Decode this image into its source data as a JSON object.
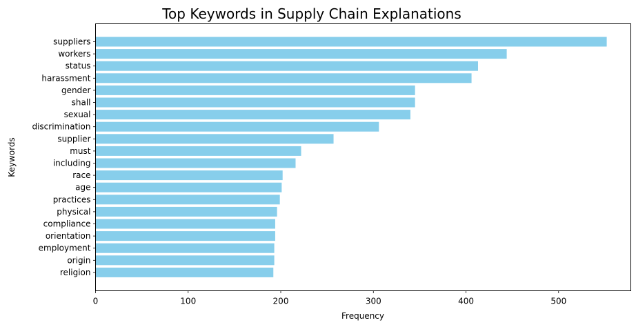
{
  "chart_data": {
    "type": "bar",
    "orientation": "horizontal",
    "title": "Top Keywords in Supply Chain Explanations",
    "xlabel": "Frequency",
    "ylabel": "Keywords",
    "xlim": [
      0,
      578
    ],
    "xticks": [
      0,
      100,
      200,
      300,
      400,
      500
    ],
    "grid": false,
    "bar_color": "#87ceeb",
    "categories": [
      "suppliers",
      "workers",
      "status",
      "harassment",
      "gender",
      "shall",
      "sexual",
      "discrimination",
      "supplier",
      "must",
      "including",
      "race",
      "age",
      "practices",
      "physical",
      "compliance",
      "orientation",
      "employment",
      "origin",
      "religion"
    ],
    "values": [
      552,
      444,
      413,
      406,
      345,
      345,
      340,
      306,
      257,
      222,
      216,
      202,
      201,
      199,
      196,
      194,
      194,
      193,
      193,
      192
    ]
  }
}
